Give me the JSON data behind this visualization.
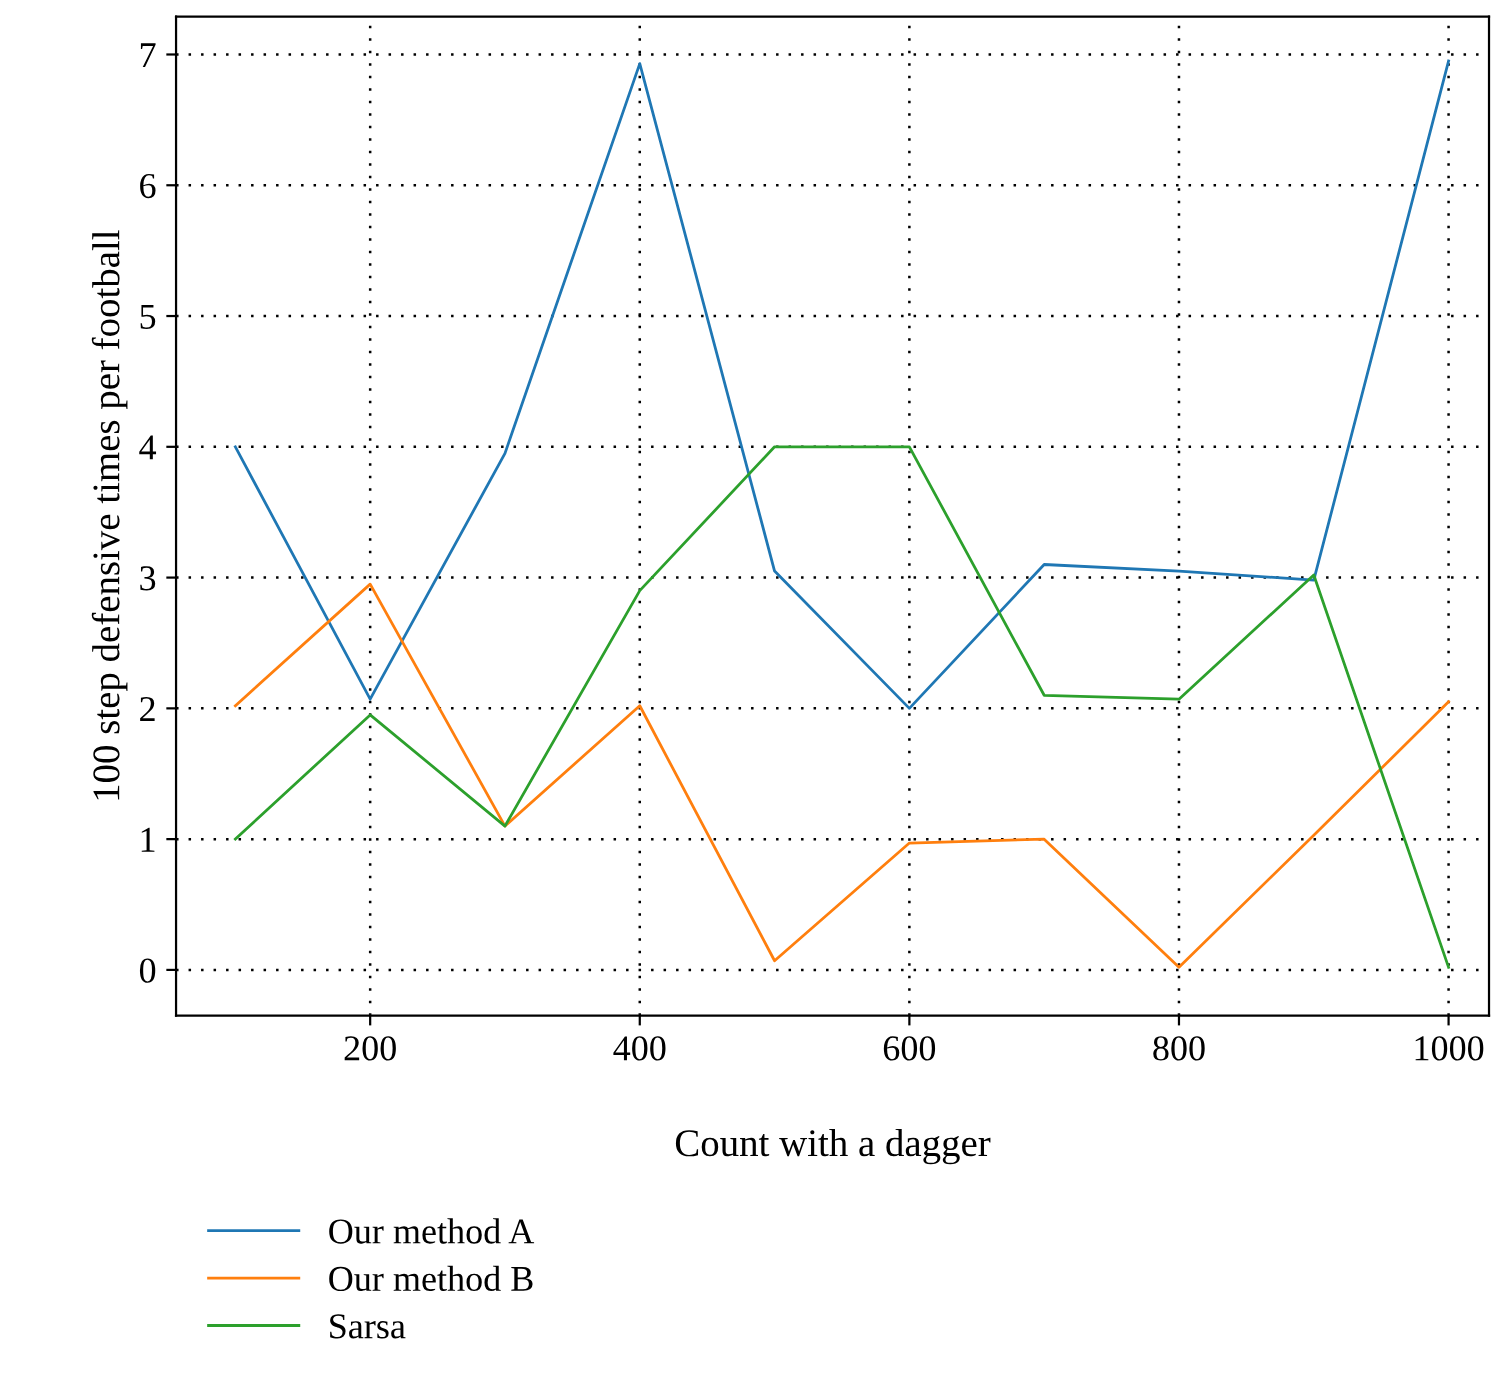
{
  "chart_data": {
    "type": "line",
    "xlabel": "Count with a dagger",
    "ylabel": "100 step defensive times per football",
    "x": [
      100,
      200,
      300,
      400,
      500,
      600,
      700,
      800,
      900,
      1000
    ],
    "series": [
      {
        "name": "Our method A",
        "color": "#1f77b4",
        "values": [
          4.0,
          2.07,
          3.95,
          6.93,
          3.05,
          2.0,
          3.1,
          3.05,
          2.98,
          6.95
        ]
      },
      {
        "name": "Our method B",
        "color": "#ff7f0e",
        "values": [
          2.02,
          2.95,
          1.1,
          2.02,
          0.07,
          0.97,
          1.0,
          0.02,
          1.03,
          2.05
        ]
      },
      {
        "name": "Sarsa",
        "color": "#2ca02c",
        "values": [
          1.0,
          1.95,
          1.1,
          2.9,
          4.0,
          4.0,
          2.1,
          2.07,
          3.02,
          0.02
        ]
      }
    ],
    "xlim": [
      56,
      1030
    ],
    "ylim": [
      -0.35,
      7.29
    ],
    "xticks": [
      200,
      400,
      600,
      800,
      1000
    ],
    "yticks": [
      0,
      1,
      2,
      3,
      4,
      5,
      6,
      7
    ],
    "grid": true,
    "legend": "bottom left",
    "line_style": "solid",
    "marker": "none"
  }
}
